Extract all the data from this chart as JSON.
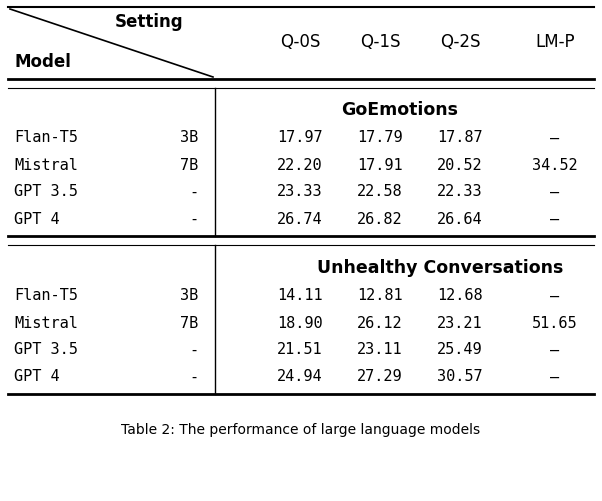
{
  "header_col1": "Model",
  "header_col2": "Setting",
  "header_cols": [
    "Q-0S",
    "Q-1S",
    "Q-2S",
    "LM-P"
  ],
  "section1_title": "GoEmotions",
  "section1_rows": [
    [
      "Flan-T5",
      "3B",
      "17.97",
      "17.79",
      "17.87",
      "—"
    ],
    [
      "Mistral",
      "7B",
      "22.20",
      "17.91",
      "20.52",
      "34.52"
    ],
    [
      "GPT 3.5",
      "-",
      "23.33",
      "22.58",
      "22.33",
      "—"
    ],
    [
      "GPT 4",
      "-",
      "26.74",
      "26.82",
      "26.64",
      "—"
    ]
  ],
  "section2_title": "Unhealthy Conversations",
  "section2_rows": [
    [
      "Flan-T5",
      "3B",
      "14.11",
      "12.81",
      "12.68",
      "—"
    ],
    [
      "Mistral",
      "7B",
      "18.90",
      "26.12",
      "23.21",
      "51.65"
    ],
    [
      "GPT 3.5",
      "-",
      "21.51",
      "23.11",
      "25.49",
      "—"
    ],
    [
      "GPT 4",
      "-",
      "24.94",
      "27.29",
      "30.57",
      "—"
    ]
  ],
  "caption": "Table 2: The performance of large language models",
  "bg_color": "#ffffff",
  "text_color": "#000000",
  "font_size": 11.0,
  "header_font_size": 12.0
}
